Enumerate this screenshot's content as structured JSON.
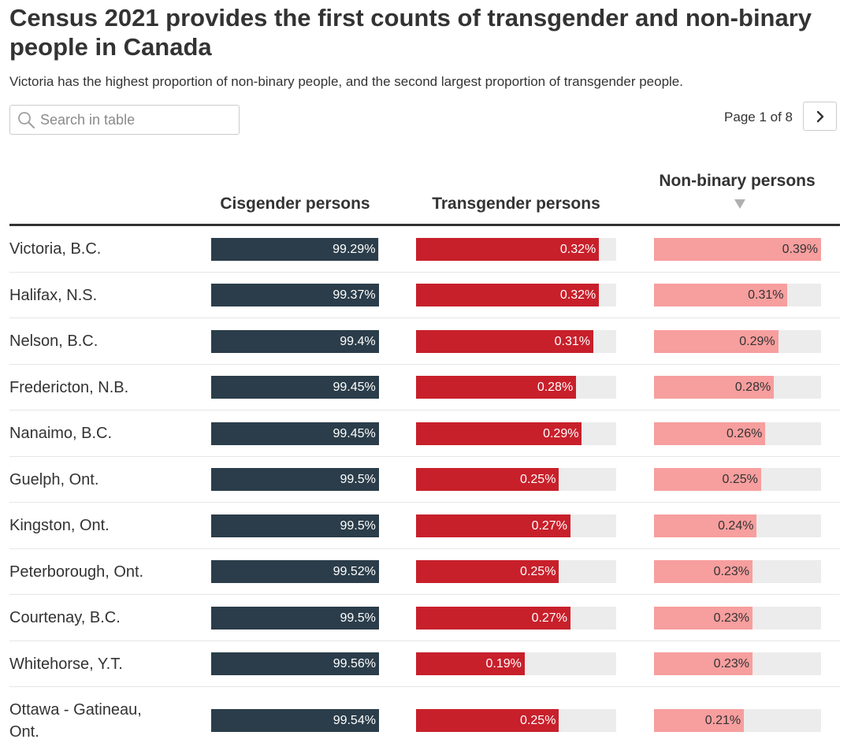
{
  "title": "Census 2021 provides the first counts of transgender and non-binary people in Canada",
  "subtitle": "Victoria has the highest proportion of non-binary people, and the second largest proportion of transgender people.",
  "search": {
    "placeholder": "Search in table",
    "icon": "search-icon"
  },
  "pagination": {
    "text": "Page 1 of 8",
    "current_page": 1,
    "total_pages": 8,
    "next_icon": "chevron-right-icon"
  },
  "colors": {
    "cisgender": "#2b3d4a",
    "transgender": "#c8202b",
    "nonbinary": "#f79e9e",
    "track": "#ececec"
  },
  "chart_data": {
    "type": "table",
    "title": "Census 2021 provides the first counts of transgender and non-binary people in Canada",
    "columns": [
      {
        "key": "cisgender",
        "label": "Cisgender persons",
        "max": 99.56
      },
      {
        "key": "transgender",
        "label": "Transgender persons",
        "max": 0.35
      },
      {
        "key": "nonbinary",
        "label": "Non-binary persons",
        "max": 0.39,
        "sorted": "descending"
      }
    ],
    "rows": [
      {
        "city": "Victoria, B.C.",
        "cisgender": 99.29,
        "transgender": 0.32,
        "nonbinary": 0.39,
        "labels": {
          "cisgender": "99.29%",
          "transgender": "0.32%",
          "nonbinary": "0.39%"
        }
      },
      {
        "city": "Halifax, N.S.",
        "cisgender": 99.37,
        "transgender": 0.32,
        "nonbinary": 0.31,
        "labels": {
          "cisgender": "99.37%",
          "transgender": "0.32%",
          "nonbinary": "0.31%"
        }
      },
      {
        "city": "Nelson, B.C.",
        "cisgender": 99.4,
        "transgender": 0.31,
        "nonbinary": 0.29,
        "labels": {
          "cisgender": "99.4%",
          "transgender": "0.31%",
          "nonbinary": "0.29%"
        }
      },
      {
        "city": "Fredericton, N.B.",
        "cisgender": 99.45,
        "transgender": 0.28,
        "nonbinary": 0.28,
        "labels": {
          "cisgender": "99.45%",
          "transgender": "0.28%",
          "nonbinary": "0.28%"
        }
      },
      {
        "city": "Nanaimo, B.C.",
        "cisgender": 99.45,
        "transgender": 0.29,
        "nonbinary": 0.26,
        "labels": {
          "cisgender": "99.45%",
          "transgender": "0.29%",
          "nonbinary": "0.26%"
        }
      },
      {
        "city": "Guelph, Ont.",
        "cisgender": 99.5,
        "transgender": 0.25,
        "nonbinary": 0.25,
        "labels": {
          "cisgender": "99.5%",
          "transgender": "0.25%",
          "nonbinary": "0.25%"
        }
      },
      {
        "city": "Kingston, Ont.",
        "cisgender": 99.5,
        "transgender": 0.27,
        "nonbinary": 0.24,
        "labels": {
          "cisgender": "99.5%",
          "transgender": "0.27%",
          "nonbinary": "0.24%"
        }
      },
      {
        "city": "Peterborough, Ont.",
        "cisgender": 99.52,
        "transgender": 0.25,
        "nonbinary": 0.23,
        "labels": {
          "cisgender": "99.52%",
          "transgender": "0.25%",
          "nonbinary": "0.23%"
        }
      },
      {
        "city": "Courtenay, B.C.",
        "cisgender": 99.5,
        "transgender": 0.27,
        "nonbinary": 0.23,
        "labels": {
          "cisgender": "99.5%",
          "transgender": "0.27%",
          "nonbinary": "0.23%"
        }
      },
      {
        "city": "Whitehorse, Y.T.",
        "cisgender": 99.56,
        "transgender": 0.19,
        "nonbinary": 0.23,
        "labels": {
          "cisgender": "99.56%",
          "transgender": "0.19%",
          "nonbinary": "0.23%"
        }
      },
      {
        "city": "Ottawa - Gatineau, Ont.",
        "cisgender": 99.54,
        "transgender": 0.25,
        "nonbinary": 0.21,
        "labels": {
          "cisgender": "99.54%",
          "transgender": "0.25%",
          "nonbinary": "0.21%"
        }
      }
    ]
  }
}
